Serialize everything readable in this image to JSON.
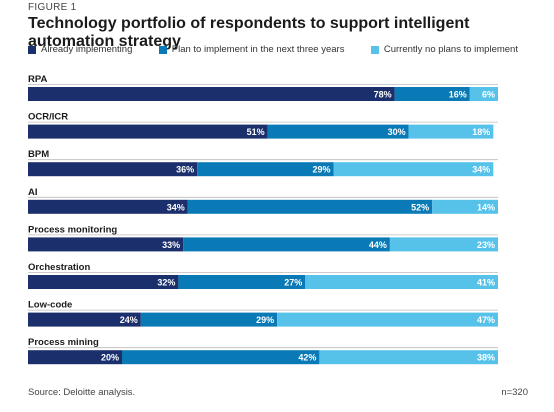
{
  "figure_label": "FIGURE 1",
  "footer": {
    "source": "Source: Deloitte analysis.",
    "n": "n=320"
  },
  "colors": {
    "already": "#1a2f6b",
    "plan": "#0a7ab6",
    "none": "#56c2ea",
    "separator": "#bcbcbc"
  },
  "chart_data": {
    "type": "bar",
    "orientation": "horizontal",
    "stacked": true,
    "title": "Technology portfolio of respondents to support intelligent automation strategy",
    "legend_position": "top",
    "categories": [
      "RPA",
      "OCR/ICR",
      "BPM",
      "AI",
      "Process monitoring",
      "Orchestration",
      "Low-code",
      "Process mining"
    ],
    "series": [
      {
        "name": "Already implementing",
        "values": [
          78,
          51,
          36,
          34,
          33,
          32,
          24,
          20
        ]
      },
      {
        "name": "Plan to implement in the next three years",
        "values": [
          16,
          30,
          29,
          52,
          44,
          27,
          29,
          42
        ]
      },
      {
        "name": "Currently no plans to implement",
        "values": [
          6,
          18,
          34,
          14,
          23,
          41,
          47,
          38
        ]
      }
    ],
    "unit": "%",
    "xlim": [
      0,
      100
    ]
  }
}
